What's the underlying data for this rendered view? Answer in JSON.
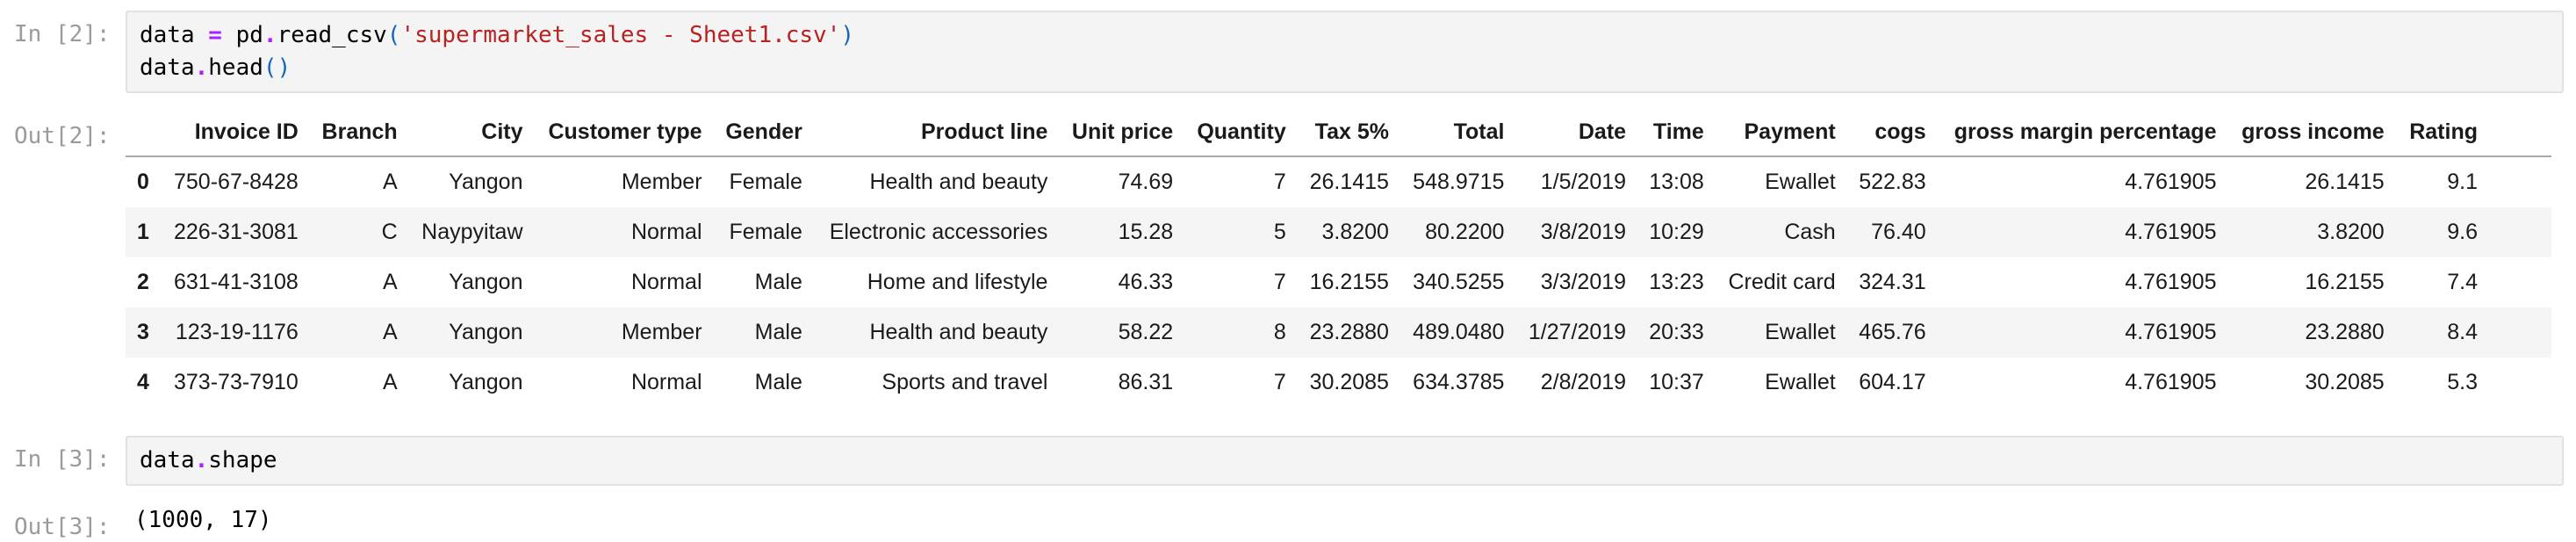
{
  "colors": {
    "code-text": "#000000",
    "operator": "#AA22FF",
    "string": "#BA2121",
    "bracket": "#1565C0",
    "prompt": "#9B9B9B",
    "cell-bg": "#F4F4F4",
    "cell-border": "#E1E1E1",
    "stripe": "#F5F5F5",
    "header-border": "#A9A9A9",
    "table-text": "#1A1A1A"
  },
  "cells": [
    {
      "prompt_in": "In [2]:",
      "prompt_out": "Out[2]:",
      "code_lines": [
        [
          {
            "t": "data ",
            "c": "n"
          },
          {
            "t": "=",
            "c": "op"
          },
          {
            "t": " pd",
            "c": "n"
          },
          {
            "t": ".",
            "c": "op"
          },
          {
            "t": "read_csv",
            "c": "n"
          },
          {
            "t": "(",
            "c": "br"
          },
          {
            "t": "'supermarket_sales - Sheet1.csv'",
            "c": "str"
          },
          {
            "t": ")",
            "c": "br"
          }
        ],
        [
          {
            "t": "data",
            "c": "n"
          },
          {
            "t": ".",
            "c": "op"
          },
          {
            "t": "head",
            "c": "n"
          },
          {
            "t": "(",
            "c": "br"
          },
          {
            "t": ")",
            "c": "br"
          }
        ]
      ],
      "table": {
        "index_header": "",
        "columns": [
          "Invoice ID",
          "Branch",
          "City",
          "Customer type",
          "Gender",
          "Product line",
          "Unit price",
          "Quantity",
          "Tax 5%",
          "Total",
          "Date",
          "Time",
          "Payment",
          "cogs",
          "gross margin percentage",
          "gross income",
          "Rating"
        ],
        "rows": [
          {
            "index": "0",
            "cells": [
              "750-67-8428",
              "A",
              "Yangon",
              "Member",
              "Female",
              "Health and beauty",
              "74.69",
              "7",
              "26.1415",
              "548.9715",
              "1/5/2019",
              "13:08",
              "Ewallet",
              "522.83",
              "4.761905",
              "26.1415",
              "9.1"
            ]
          },
          {
            "index": "1",
            "cells": [
              "226-31-3081",
              "C",
              "Naypyitaw",
              "Normal",
              "Female",
              "Electronic accessories",
              "15.28",
              "5",
              "3.8200",
              "80.2200",
              "3/8/2019",
              "10:29",
              "Cash",
              "76.40",
              "4.761905",
              "3.8200",
              "9.6"
            ]
          },
          {
            "index": "2",
            "cells": [
              "631-41-3108",
              "A",
              "Yangon",
              "Normal",
              "Male",
              "Home and lifestyle",
              "46.33",
              "7",
              "16.2155",
              "340.5255",
              "3/3/2019",
              "13:23",
              "Credit card",
              "324.31",
              "4.761905",
              "16.2155",
              "7.4"
            ]
          },
          {
            "index": "3",
            "cells": [
              "123-19-1176",
              "A",
              "Yangon",
              "Member",
              "Male",
              "Health and beauty",
              "58.22",
              "8",
              "23.2880",
              "489.0480",
              "1/27/2019",
              "20:33",
              "Ewallet",
              "465.76",
              "4.761905",
              "23.2880",
              "8.4"
            ]
          },
          {
            "index": "4",
            "cells": [
              "373-73-7910",
              "A",
              "Yangon",
              "Normal",
              "Male",
              "Sports and travel",
              "86.31",
              "7",
              "30.2085",
              "634.3785",
              "2/8/2019",
              "10:37",
              "Ewallet",
              "604.17",
              "4.761905",
              "30.2085",
              "5.3"
            ]
          }
        ]
      }
    },
    {
      "prompt_in": "In [3]:",
      "prompt_out": "Out[3]:",
      "code_lines": [
        [
          {
            "t": "data",
            "c": "n"
          },
          {
            "t": ".",
            "c": "op"
          },
          {
            "t": "shape",
            "c": "n"
          }
        ]
      ],
      "output_text": "(1000, 17)"
    }
  ]
}
